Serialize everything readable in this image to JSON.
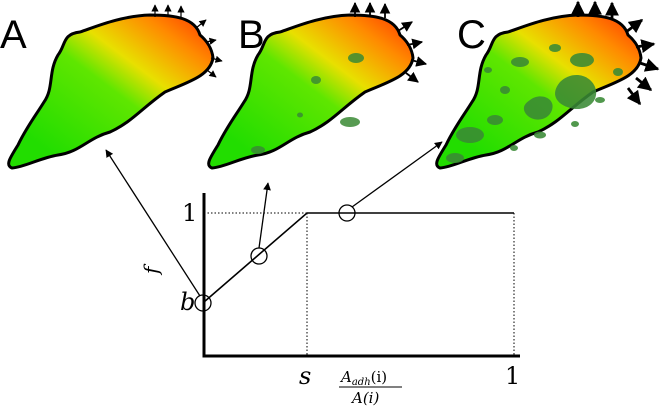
{
  "panels": [
    {
      "letter": "A"
    },
    {
      "letter": "B"
    },
    {
      "letter": "C"
    }
  ],
  "graph": {
    "y_label": "f",
    "y_tick_top": "1",
    "y_tick_b": "b",
    "x_tick_s": "s",
    "x_tick_one": "1",
    "x_label_num_base": "A",
    "x_label_num_sub": "adh",
    "x_label_num_arg": "(i)",
    "x_label_den": "A(i)"
  },
  "colors": {
    "cell_green": "#22dd00",
    "cell_yellow": "#e8e000",
    "cell_orange": "#ff6600",
    "adhesion_dark": "#3a8a35"
  }
}
